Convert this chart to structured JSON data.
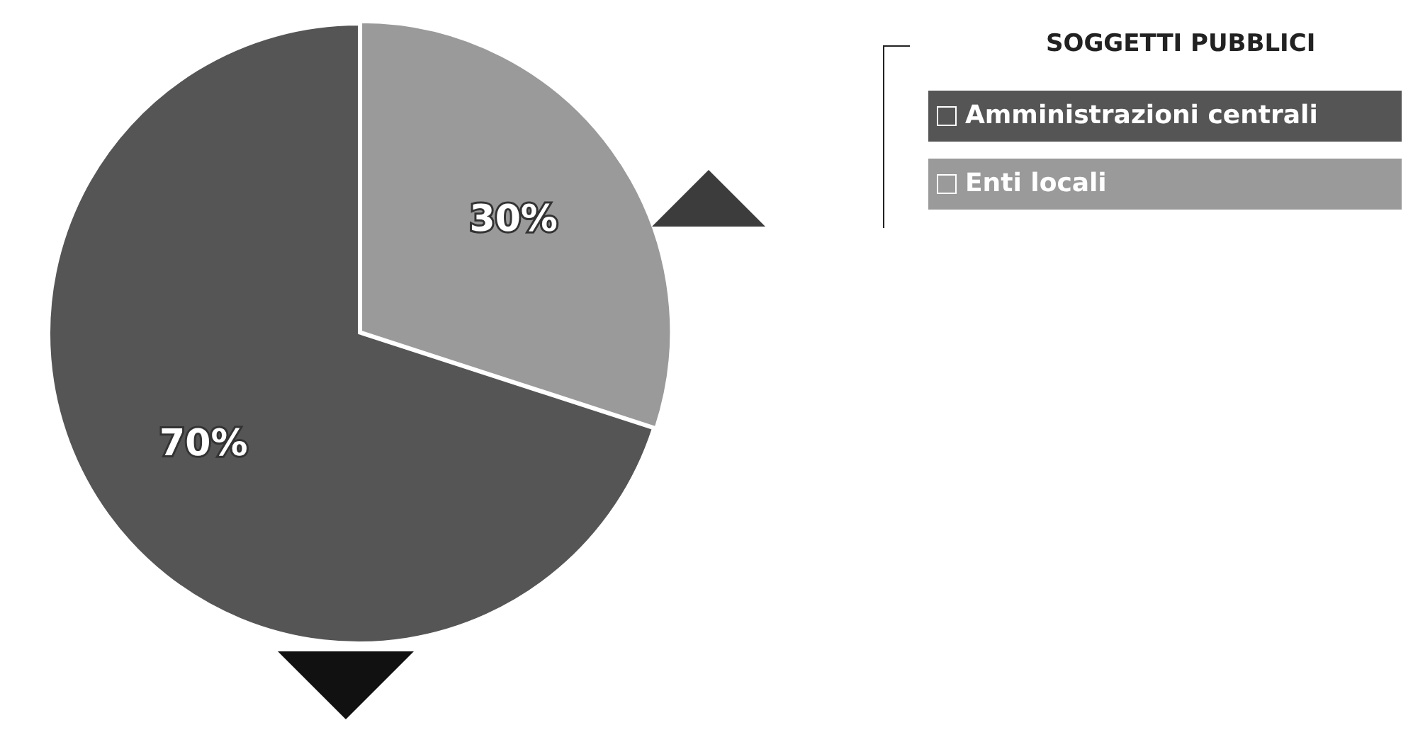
{
  "chart_data": {
    "type": "pie",
    "legend_title": "SOGGETTI PUBBLICI",
    "categories": [
      "Amministrazioni centrali",
      "Enti locali"
    ],
    "values": [
      70,
      30
    ],
    "colors": [
      "#555555",
      "#9a9a9a"
    ],
    "value_labels": [
      "70%",
      "30%"
    ],
    "legend": "top right"
  }
}
